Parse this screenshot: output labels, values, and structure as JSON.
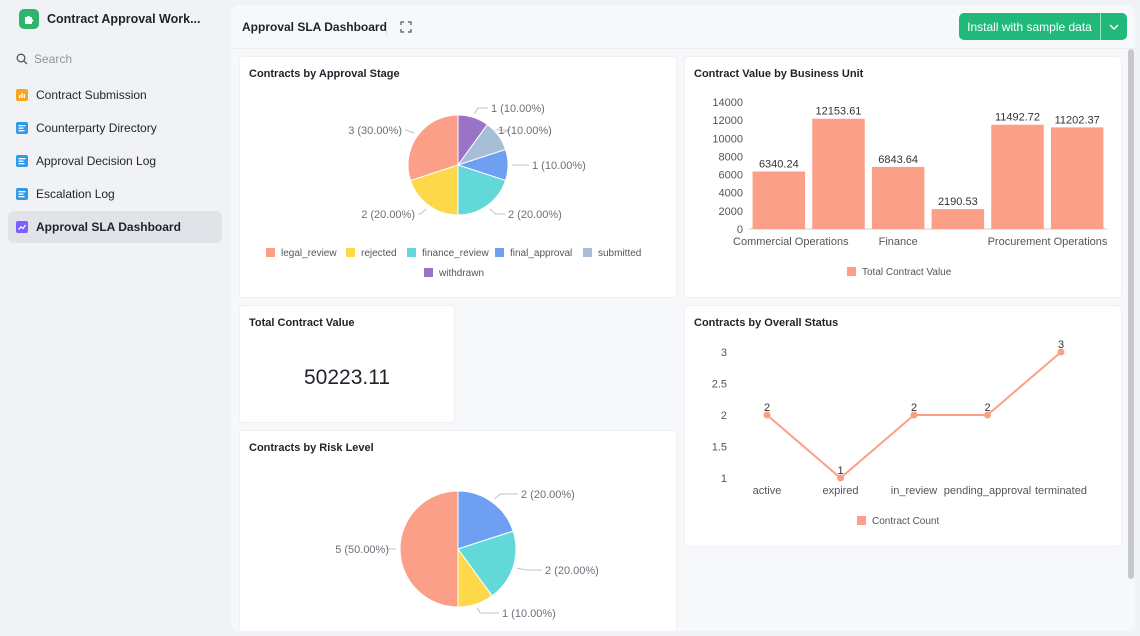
{
  "app": {
    "title": "Contract Approval Work..."
  },
  "search": {
    "placeholder": "Search"
  },
  "sidebar": {
    "items": [
      {
        "label": "Contract Submission",
        "icon": "bar-chart-icon",
        "color": "#f5a623"
      },
      {
        "label": "Counterparty Directory",
        "icon": "table-icon",
        "color": "#2f9bea"
      },
      {
        "label": "Approval Decision Log",
        "icon": "table-icon",
        "color": "#2f9bea"
      },
      {
        "label": "Escalation Log",
        "icon": "table-icon",
        "color": "#2f9bea"
      },
      {
        "label": "Approval SLA Dashboard",
        "icon": "dashboard-icon",
        "color": "#7b61ff"
      }
    ],
    "active_index": 4
  },
  "header": {
    "title": "Approval SLA Dashboard",
    "install_label": "Install with sample data"
  },
  "colors": {
    "accent": "#20b97a",
    "salmon": "#fc9f88"
  },
  "cards": {
    "approval_stage": {
      "title": "Contracts by Approval Stage"
    },
    "business_unit": {
      "title": "Contract Value by Business Unit"
    },
    "total_value": {
      "title": "Total Contract Value",
      "value": "50223.11"
    },
    "overall_status": {
      "title": "Contracts by Overall Status"
    },
    "risk_level": {
      "title": "Contracts by Risk Level"
    }
  },
  "chart_data": [
    {
      "id": "approval_stage",
      "type": "pie",
      "title": "Contracts by Approval Stage",
      "slices": [
        {
          "name": "withdrawn",
          "value": 1,
          "label": "1 (10.00%)",
          "color": "#9a72c6"
        },
        {
          "name": "submitted",
          "value": 1,
          "label": "1 (10.00%)",
          "color": "#a6bfd6"
        },
        {
          "name": "final_approval",
          "value": 1,
          "label": "1 (10.00%)",
          "color": "#6e9ff0"
        },
        {
          "name": "finance_review",
          "value": 2,
          "label": "2 (20.00%)",
          "color": "#63d8d8"
        },
        {
          "name": "rejected",
          "value": 2,
          "label": "2 (20.00%)",
          "color": "#fcd84a"
        },
        {
          "name": "legal_review",
          "value": 3,
          "label": "3 (30.00%)",
          "color": "#fc9f88"
        }
      ],
      "legend_order": [
        "legal_review",
        "rejected",
        "finance_review",
        "final_approval",
        "submitted",
        "withdrawn"
      ],
      "legend_position": "bottom"
    },
    {
      "id": "business_unit",
      "type": "bar",
      "title": "Contract Value by Business Unit",
      "categories": [
        "Commercial Operations",
        "",
        "Finance",
        "",
        "Procurement Operations",
        ""
      ],
      "values": [
        6340.24,
        12153.61,
        6843.64,
        2190.53,
        11492.72,
        11202.37
      ],
      "value_labels": [
        "6340.24",
        "12153.61",
        "6843.64",
        "2190.53",
        "11492.72",
        "11202.37"
      ],
      "series": [
        {
          "name": "Total Contract Value",
          "color": "#fc9f88"
        }
      ],
      "ylim": [
        0,
        14000
      ],
      "yticks": [
        "0",
        "2000",
        "4000",
        "6000",
        "8000",
        "10000",
        "12000",
        "14000"
      ],
      "legend_position": "bottom"
    },
    {
      "id": "overall_status",
      "type": "line",
      "title": "Contracts by Overall Status",
      "categories": [
        "active",
        "expired",
        "in_review",
        "pending_approval",
        "terminated"
      ],
      "values": [
        2,
        1,
        2,
        2,
        3
      ],
      "value_labels": [
        "2",
        "1",
        "2",
        "2",
        "3"
      ],
      "series": [
        {
          "name": "Contract Count",
          "color": "#fc9f88"
        }
      ],
      "ylim": [
        1,
        3
      ],
      "yticks": [
        "1",
        "1.5",
        "2",
        "2.5",
        "3"
      ],
      "legend_position": "bottom"
    },
    {
      "id": "risk_level",
      "type": "pie",
      "title": "Contracts by Risk Level",
      "slices": [
        {
          "value": 2,
          "label": "2 (20.00%)",
          "color": "#6e9ff0"
        },
        {
          "value": 2,
          "label": "2 (20.00%)",
          "color": "#63d8d8"
        },
        {
          "value": 1,
          "label": "1 (10.00%)",
          "color": "#fcd84a"
        },
        {
          "value": 5,
          "label": "5 (50.00%)",
          "color": "#fc9f88"
        }
      ]
    }
  ]
}
